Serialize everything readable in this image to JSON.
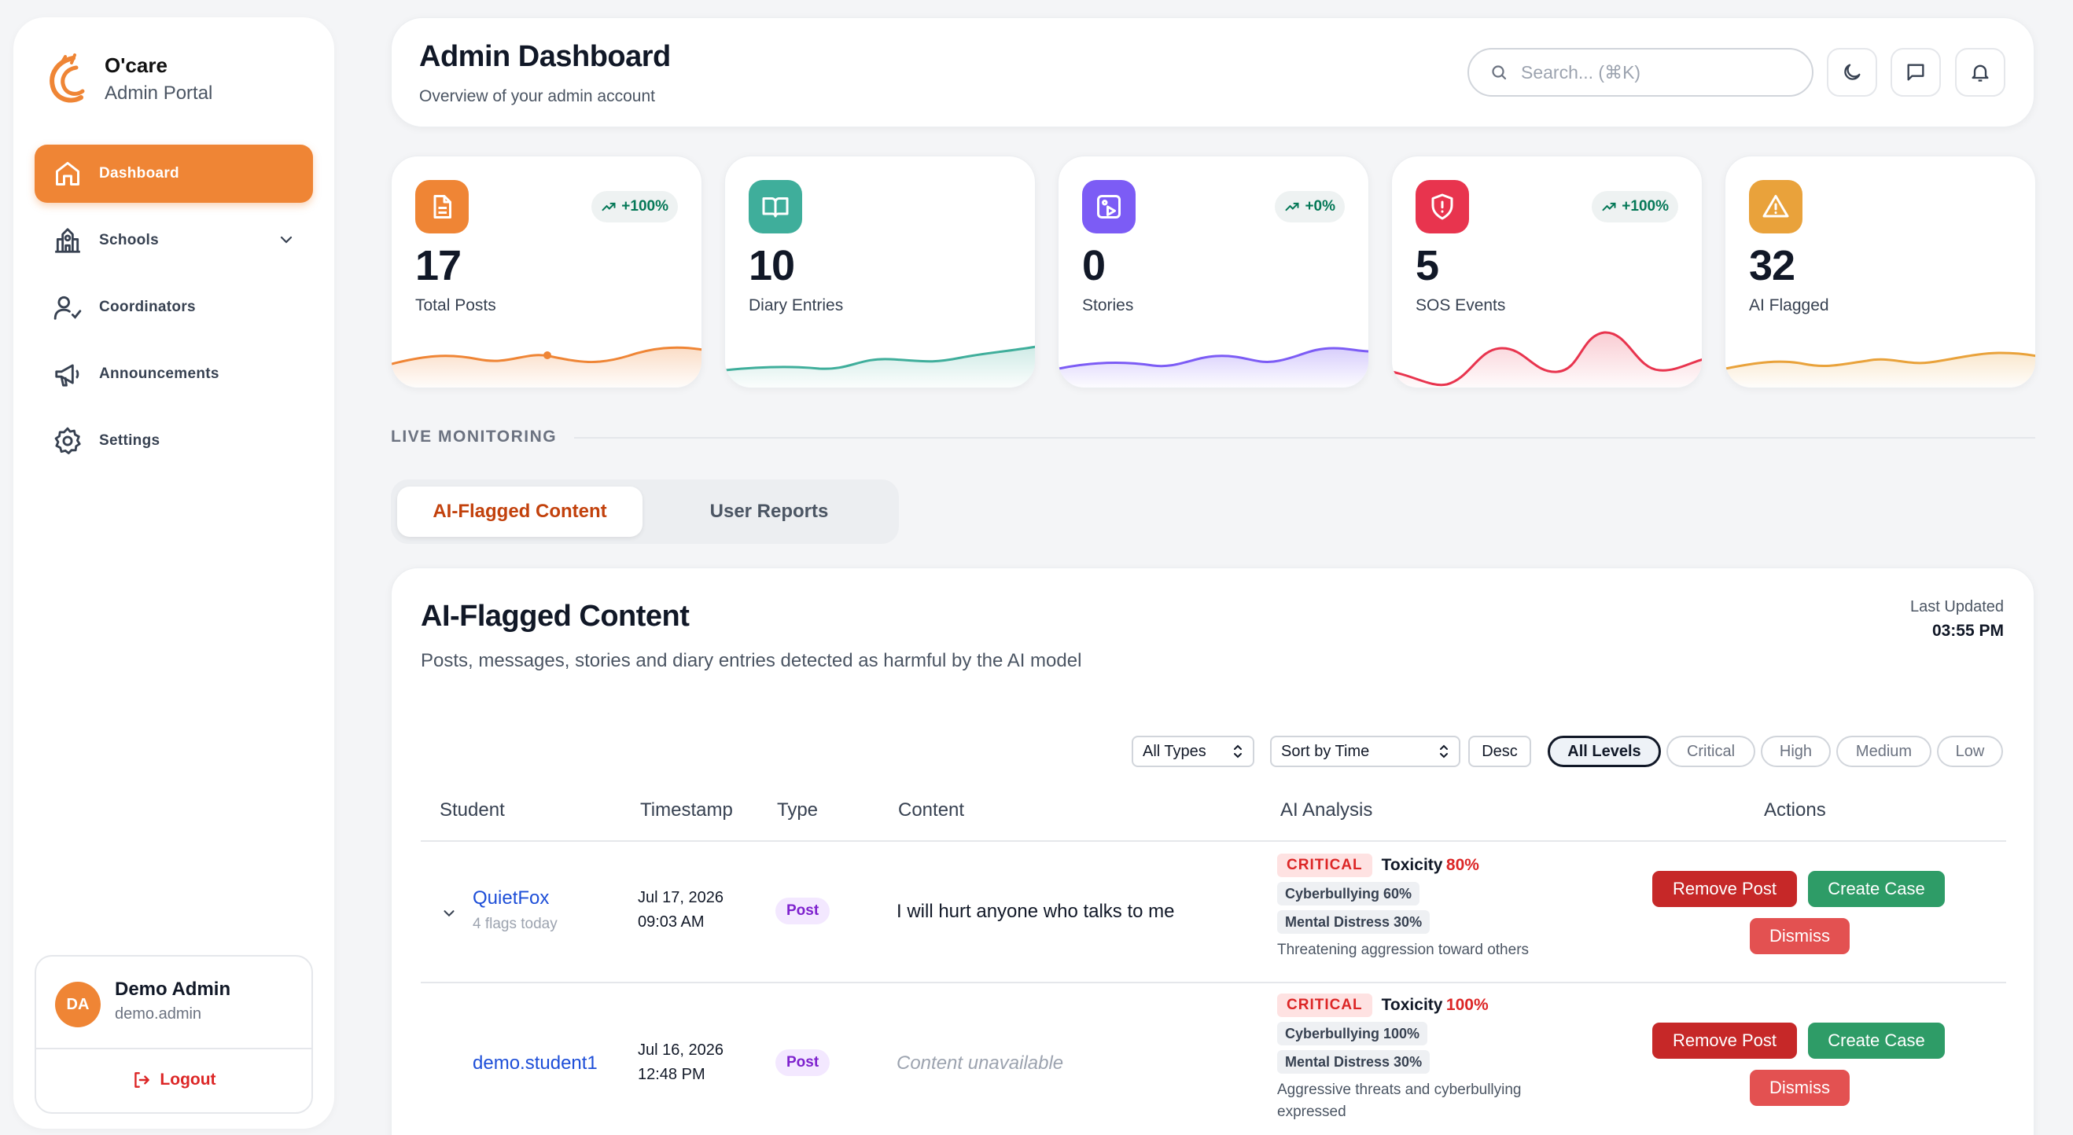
{
  "brand": {
    "name": "O'care",
    "subtitle": "Admin Portal"
  },
  "nav": [
    {
      "label": "Dashboard",
      "icon": "home-icon",
      "active": true
    },
    {
      "label": "Schools",
      "icon": "school-icon"
    },
    {
      "label": "Coordinators",
      "icon": "user-check-icon"
    },
    {
      "label": "Announcements",
      "icon": "megaphone-icon"
    },
    {
      "label": "Settings",
      "icon": "gear-icon"
    }
  ],
  "profile": {
    "initials": "DA",
    "name": "Demo Admin",
    "username": "demo.admin",
    "logout_label": "Logout"
  },
  "header": {
    "title": "Admin Dashboard",
    "subtitle": "Overview of your admin account",
    "search_placeholder": "Search... (⌘K)"
  },
  "stats": [
    {
      "value": "17",
      "label": "Total Posts",
      "trend": "+100%",
      "icon": "document-icon",
      "color": "#ef8535"
    },
    {
      "value": "10",
      "label": "Diary Entries",
      "trend": "",
      "icon": "book-open-icon",
      "color": "#3fae9b"
    },
    {
      "value": "0",
      "label": "Stories",
      "trend": "+0%",
      "icon": "image-play-icon",
      "color": "#7c5cf5"
    },
    {
      "value": "5",
      "label": "SOS Events",
      "trend": "+100%",
      "icon": "shield-alert-icon",
      "color": "#e8344e"
    },
    {
      "value": "32",
      "label": "AI Flagged",
      "trend": "",
      "icon": "warning-triangle-icon",
      "color": "#e9a23b"
    }
  ],
  "monitoring": {
    "section_label": "LIVE MONITORING",
    "tabs": [
      "AI-Flagged Content",
      "User Reports"
    ]
  },
  "panel": {
    "title": "AI-Flagged Content",
    "description": "Posts, messages, stories and diary entries detected as harmful by the AI model",
    "last_updated_label": "Last Updated",
    "last_updated_time": "03:55 PM",
    "filters": {
      "type": "All Types",
      "sort": "Sort by Time",
      "order": "Desc"
    },
    "levels": [
      "All Levels",
      "Critical",
      "High",
      "Medium",
      "Low"
    ],
    "columns": [
      "Student",
      "Timestamp",
      "Type",
      "Content",
      "AI Analysis",
      "Actions"
    ],
    "rows": [
      {
        "student": "QuietFox",
        "sub": "4 flags today",
        "date": "Jul 17, 2026",
        "time": "09:03 AM",
        "type": "Post",
        "content": "I will hurt anyone who talks to me",
        "severity": "CRITICAL",
        "toxicity_label": "Toxicity",
        "toxicity": "80%",
        "chips": [
          "Cyberbullying 60%",
          "Mental Distress 30%"
        ],
        "note": "Threatening aggression toward others",
        "actions": [
          "Remove Post",
          "Create Case",
          "Dismiss"
        ]
      },
      {
        "student": "demo.student1",
        "sub": "",
        "date": "Jul 16, 2026",
        "time": "12:48 PM",
        "type": "Post",
        "content": "Content unavailable",
        "severity": "CRITICAL",
        "toxicity_label": "Toxicity",
        "toxicity": "100%",
        "chips": [
          "Cyberbullying 100%",
          "Mental Distress 30%"
        ],
        "note": "Aggressive threats and cyberbullying expressed",
        "actions": [
          "Remove Post",
          "Create Case",
          "Dismiss"
        ]
      }
    ]
  }
}
